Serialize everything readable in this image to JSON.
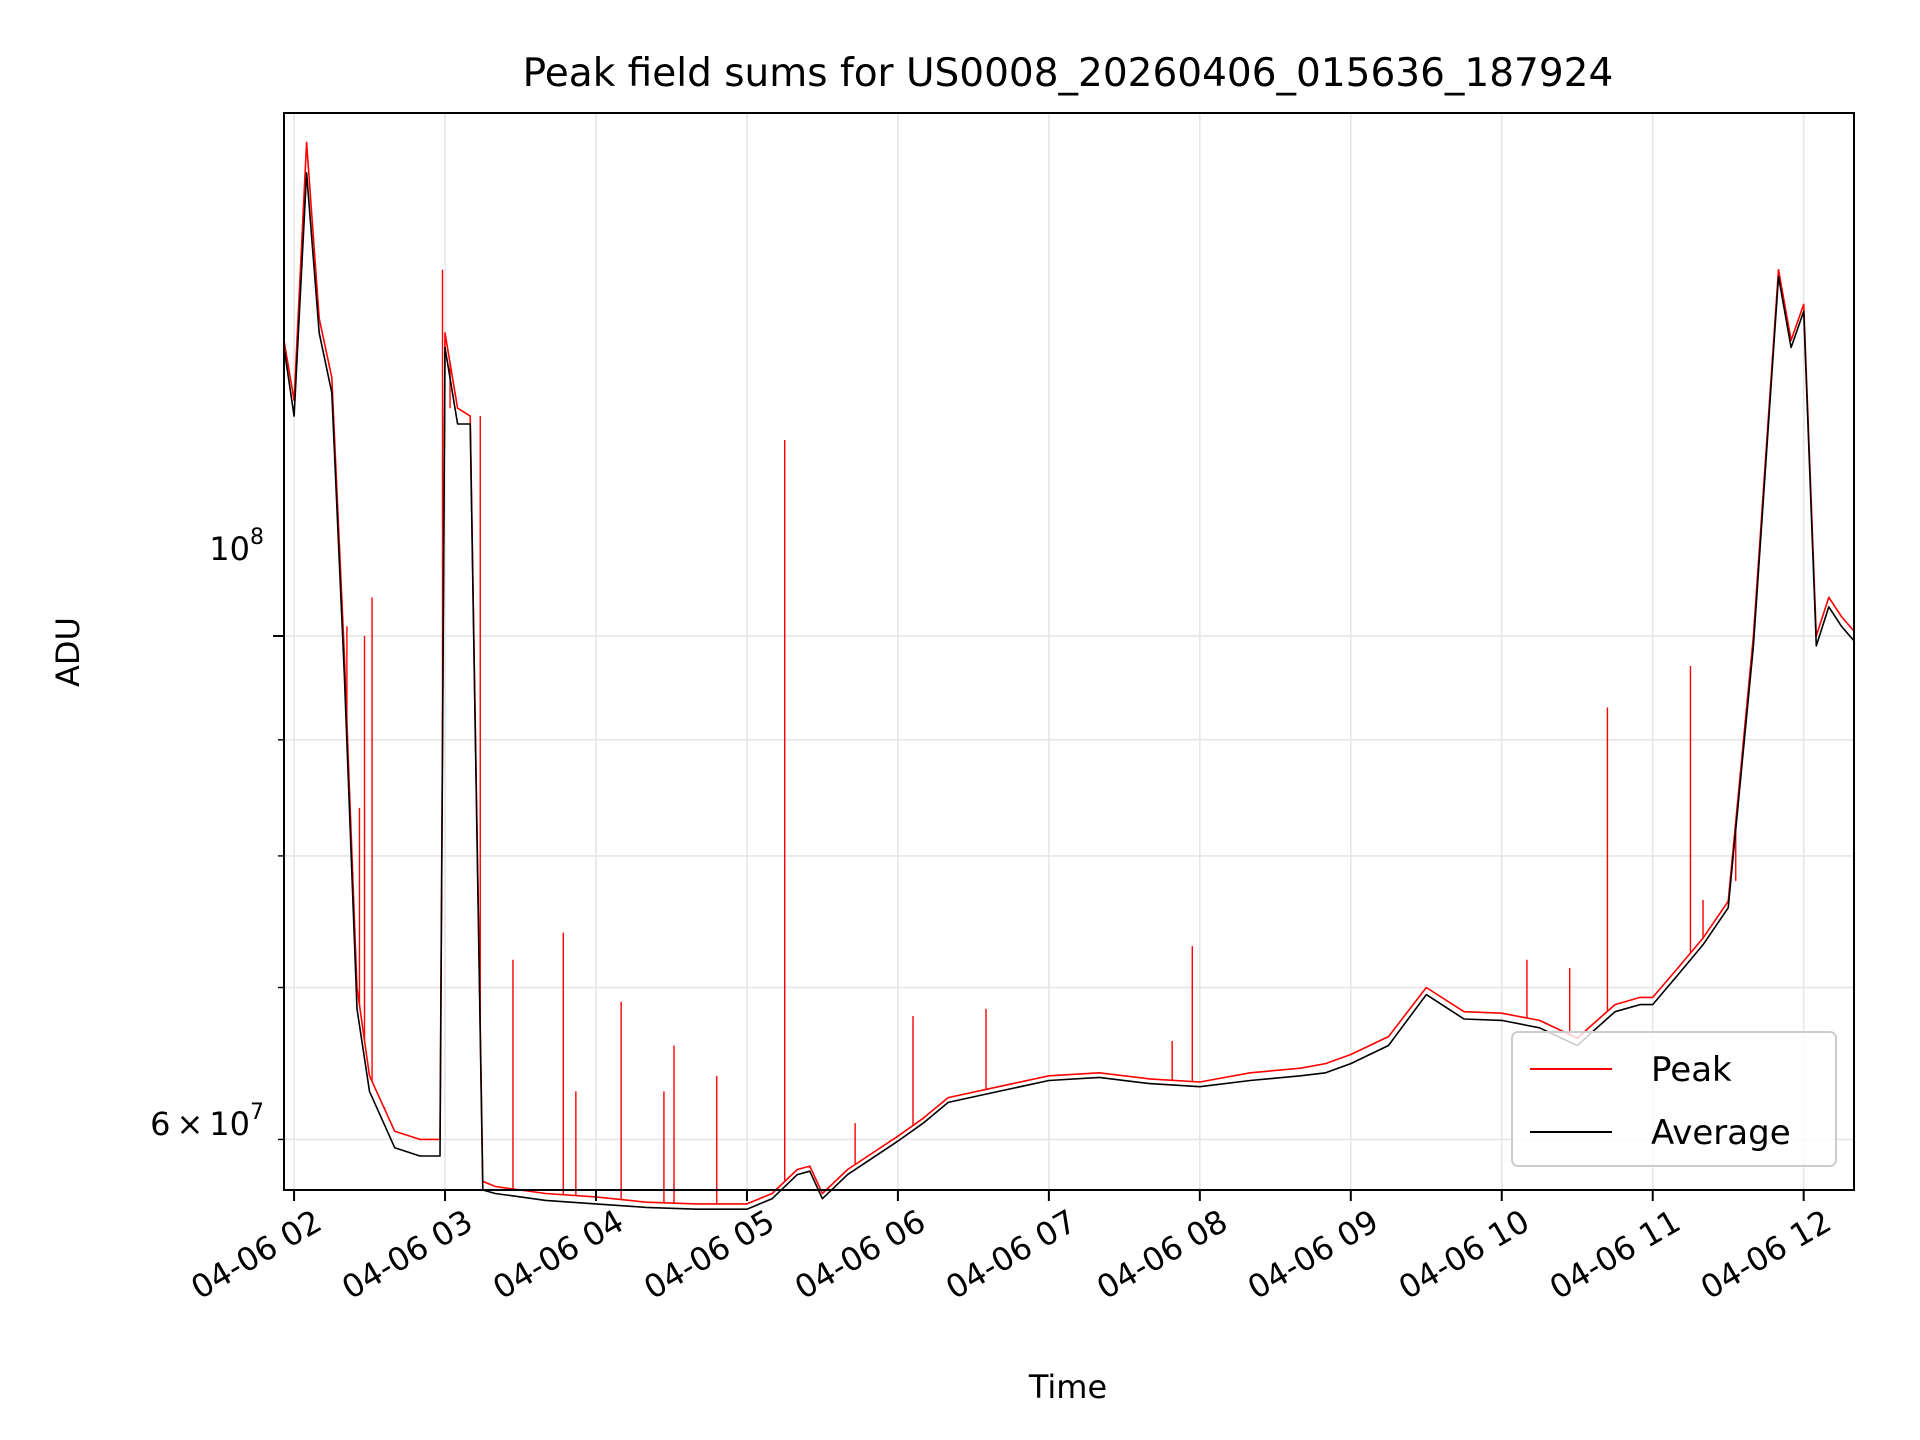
{
  "chart_data": {
    "type": "line",
    "title": "Peak field sums for US0008_20260406_015636_187924",
    "xlabel": "Time",
    "ylabel": "ADU",
    "yscale": "log",
    "grid": true,
    "legend_position": "lower-right",
    "x_ticks": [
      "04-06 02",
      "04-06 03",
      "04-06 04",
      "04-06 05",
      "04-06 06",
      "04-06 07",
      "04-06 08",
      "04-06 09",
      "04-06 10",
      "04-06 11",
      "04-06 12"
    ],
    "y_tick_major": {
      "value": 100000000,
      "base": "10",
      "exp": "8"
    },
    "y_tick_minor_label": {
      "value": 60000000,
      "mantissa": "6",
      "times": "×",
      "base": "10",
      "exp": "7"
    },
    "xlim": [
      "04-06 01:56",
      "04-06 12:20"
    ],
    "ylim": [
      57000000,
      170000000
    ],
    "series": [
      {
        "name": "Peak",
        "color": "#ff0000",
        "x": [
          "01:56",
          "02:00",
          "02:05",
          "02:10",
          "02:15",
          "02:20",
          "02:25",
          "02:30",
          "02:40",
          "02:50",
          "02:58",
          "03:00",
          "03:05",
          "03:10",
          "03:15",
          "03:20",
          "03:40",
          "04:00",
          "04:20",
          "04:40",
          "05:00",
          "05:10",
          "05:20",
          "05:25",
          "05:30",
          "05:40",
          "06:00",
          "06:10",
          "06:20",
          "06:40",
          "07:00",
          "07:20",
          "07:40",
          "08:00",
          "08:20",
          "08:40",
          "08:50",
          "09:00",
          "09:15",
          "09:30",
          "09:45",
          "10:00",
          "10:15",
          "10:30",
          "10:45",
          "10:55",
          "11:00",
          "11:10",
          "11:20",
          "11:30",
          "11:40",
          "11:50",
          "11:55",
          "12:00",
          "12:05",
          "12:10",
          "12:15",
          "12:20"
        ],
        "values": [
          135000000,
          127000000,
          165000000,
          138000000,
          130000000,
          98000000,
          70000000,
          64000000,
          60500000,
          60000000,
          60000000,
          136000000,
          126000000,
          125000000,
          57500000,
          57200000,
          56800000,
          56600000,
          56300000,
          56200000,
          56200000,
          56800000,
          58200000,
          58400000,
          56800000,
          58200000,
          60200000,
          61300000,
          62600000,
          63300000,
          64000000,
          64200000,
          63800000,
          63600000,
          64200000,
          64500000,
          64800000,
          65400000,
          66600000,
          70000000,
          68300000,
          68200000,
          67700000,
          66500000,
          68800000,
          69300000,
          69300000,
          71400000,
          73600000,
          76400000,
          100000000,
          145000000,
          135000000,
          140000000,
          100000000,
          104000000,
          102000000,
          100500000
        ],
        "spikes": [
          {
            "x": "02:21",
            "value": 101000000
          },
          {
            "x": "02:26",
            "value": 84000000
          },
          {
            "x": "02:28",
            "value": 100000000
          },
          {
            "x": "02:31",
            "value": 104000000
          },
          {
            "x": "02:36",
            "value": 62000000
          },
          {
            "x": "02:59",
            "value": 145000000
          },
          {
            "x": "03:02",
            "value": 126000000
          },
          {
            "x": "03:14",
            "value": 125000000
          },
          {
            "x": "03:27",
            "value": 72000000
          },
          {
            "x": "03:47",
            "value": 74000000
          },
          {
            "x": "03:52",
            "value": 63000000
          },
          {
            "x": "04:10",
            "value": 69000000
          },
          {
            "x": "04:27",
            "value": 63000000
          },
          {
            "x": "04:31",
            "value": 66000000
          },
          {
            "x": "04:48",
            "value": 64000000
          },
          {
            "x": "05:15",
            "value": 122000000
          },
          {
            "x": "05:43",
            "value": 61000000
          },
          {
            "x": "06:06",
            "value": 68000000
          },
          {
            "x": "06:35",
            "value": 68500000
          },
          {
            "x": "07:49",
            "value": 66300000
          },
          {
            "x": "07:57",
            "value": 73000000
          },
          {
            "x": "10:10",
            "value": 72000000
          },
          {
            "x": "10:27",
            "value": 71400000
          },
          {
            "x": "10:42",
            "value": 93000000
          },
          {
            "x": "11:15",
            "value": 97000000
          },
          {
            "x": "11:20",
            "value": 76500000
          },
          {
            "x": "11:33",
            "value": 78000000
          }
        ]
      },
      {
        "name": "Average",
        "color": "#000000",
        "x": [
          "01:56",
          "02:00",
          "02:05",
          "02:10",
          "02:15",
          "02:20",
          "02:25",
          "02:30",
          "02:40",
          "02:50",
          "02:58",
          "03:00",
          "03:05",
          "03:10",
          "03:15",
          "03:20",
          "03:40",
          "04:00",
          "04:20",
          "04:40",
          "05:00",
          "05:10",
          "05:20",
          "05:25",
          "05:30",
          "05:40",
          "06:00",
          "06:10",
          "06:20",
          "06:40",
          "07:00",
          "07:20",
          "07:40",
          "08:00",
          "08:20",
          "08:40",
          "08:50",
          "09:00",
          "09:15",
          "09:30",
          "09:45",
          "10:00",
          "10:15",
          "10:30",
          "10:45",
          "10:55",
          "11:00",
          "11:10",
          "11:20",
          "11:30",
          "11:40",
          "11:50",
          "11:55",
          "12:00",
          "12:05",
          "12:10",
          "12:15",
          "12:20"
        ],
        "values": [
          134000000,
          125000000,
          160000000,
          136000000,
          128000000,
          96000000,
          68500000,
          63000000,
          59500000,
          59000000,
          59000000,
          134000000,
          124000000,
          124000000,
          57000000,
          56800000,
          56400000,
          56200000,
          56000000,
          55900000,
          55900000,
          56500000,
          57900000,
          58100000,
          56500000,
          57900000,
          59900000,
          61000000,
          62300000,
          63000000,
          63700000,
          63900000,
          63500000,
          63300000,
          63700000,
          64000000,
          64200000,
          64800000,
          66000000,
          69500000,
          67800000,
          67700000,
          67200000,
          66000000,
          68300000,
          68800000,
          68800000,
          70900000,
          73100000,
          75900000,
          99000000,
          144000000,
          134000000,
          139000000,
          99000000,
          103000000,
          101000000,
          99500000
        ]
      }
    ]
  }
}
